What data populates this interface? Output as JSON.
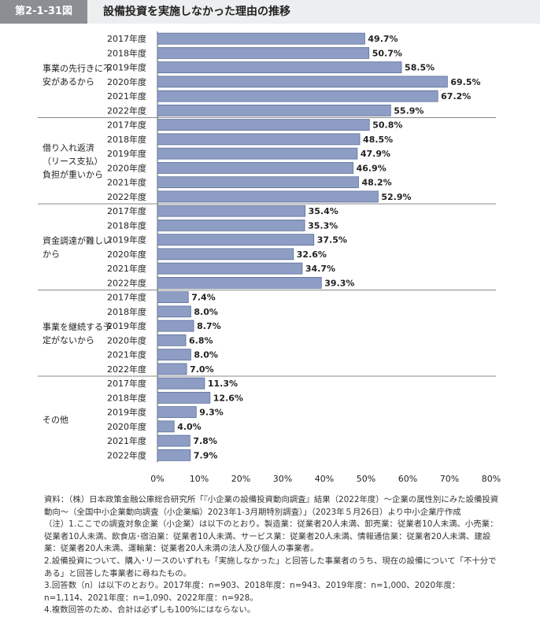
{
  "header": {
    "figure_number": "第2-1-31図",
    "title": "設備投資を実施しなかった理由の推移"
  },
  "colors": {
    "bar": "#8e9dc4",
    "bar_stroke": "#5d6f9c",
    "header_tag": "#8b8f93",
    "header_bg": "#eceeef"
  },
  "chart_data": {
    "type": "bar",
    "orientation": "horizontal",
    "value_unit": "%",
    "xlim": [
      0,
      80
    ],
    "x_ticks": [
      "0%",
      "10%",
      "20%",
      "30%",
      "40%",
      "50%",
      "60%",
      "70%",
      "80%"
    ],
    "grid": false,
    "groups": [
      {
        "label": "事業の先行きに不安があるから",
        "years": [
          "2017年度",
          "2018年度",
          "2019年度",
          "2020年度",
          "2021年度",
          "2022年度"
        ],
        "values": [
          49.7,
          50.7,
          58.5,
          69.5,
          67.2,
          55.9
        ],
        "value_labels": [
          "49.7%",
          "50.7%",
          "58.5%",
          "69.5%",
          "67.2%",
          "55.9%"
        ]
      },
      {
        "label": "借り入れ返済（リース支払）負担が重いから",
        "years": [
          "2017年度",
          "2018年度",
          "2019年度",
          "2020年度",
          "2021年度",
          "2022年度"
        ],
        "values": [
          50.8,
          48.5,
          47.9,
          46.9,
          48.2,
          52.9
        ],
        "value_labels": [
          "50.8%",
          "48.5%",
          "47.9%",
          "46.9%",
          "48.2%",
          "52.9%"
        ]
      },
      {
        "label": "資金調達が難しいから",
        "years": [
          "2017年度",
          "2018年度",
          "2019年度",
          "2020年度",
          "2021年度",
          "2022年度"
        ],
        "values": [
          35.4,
          35.3,
          37.5,
          32.6,
          34.7,
          39.3
        ],
        "value_labels": [
          "35.4%",
          "35.3%",
          "37.5%",
          "32.6%",
          "34.7%",
          "39.3%"
        ]
      },
      {
        "label": "事業を継続する予定がないから",
        "years": [
          "2017年度",
          "2018年度",
          "2019年度",
          "2020年度",
          "2021年度",
          "2022年度"
        ],
        "values": [
          7.4,
          8.0,
          8.7,
          6.8,
          8.0,
          7.0
        ],
        "value_labels": [
          "7.4%",
          "8.0%",
          "8.7%",
          "6.8%",
          "8.0%",
          "7.0%"
        ]
      },
      {
        "label": "その他",
        "years": [
          "2017年度",
          "2018年度",
          "2019年度",
          "2020年度",
          "2021年度",
          "2022年度"
        ],
        "values": [
          11.3,
          12.6,
          9.3,
          4.0,
          7.8,
          7.9
        ],
        "value_labels": [
          "11.3%",
          "12.6%",
          "9.3%",
          "4.0%",
          "7.8%",
          "7.9%"
        ]
      }
    ]
  },
  "notes": {
    "source": "資料：（株）日本政策金融公庫総合研究所「『小企業の設備投資動向調査』結果（2022年度）～企業の属性別にみた設備投資動向～（全国中小企業動向調査（小企業編）2023年1-3月期特別調査）」（2023年５月26日）より中小企業庁作成",
    "note1": "（注）1.ここでの調査対象企業（小企業）は以下のとおり。製造業：従業者20人未満、卸売業：従業者10人未満、小売業：従業者10人未満、飲食店･宿泊業：従業者10人未満、サービス業：従業者20人未満、情報通信業：従業者20人未満、建設業：従業者20人未満、運輸業：従業者20人未満の法人及び個人の事業者。",
    "note2": "2.設備投資について、購入･リースのいずれも「実施しなかった」と回答した事業者のうち、現在の設備について「不十分である」と回答した事業者に尋ねたもの。",
    "note3": "3.回答数（n）は以下のとおり。2017年度：n=903、2018年度：n=943、2019年度：n=1,000、2020年度：n=1,114、2021年度：n=1,090、2022年度：n=928。",
    "note4": "4.複数回答のため、合計は必ずしも100%にはならない。"
  }
}
